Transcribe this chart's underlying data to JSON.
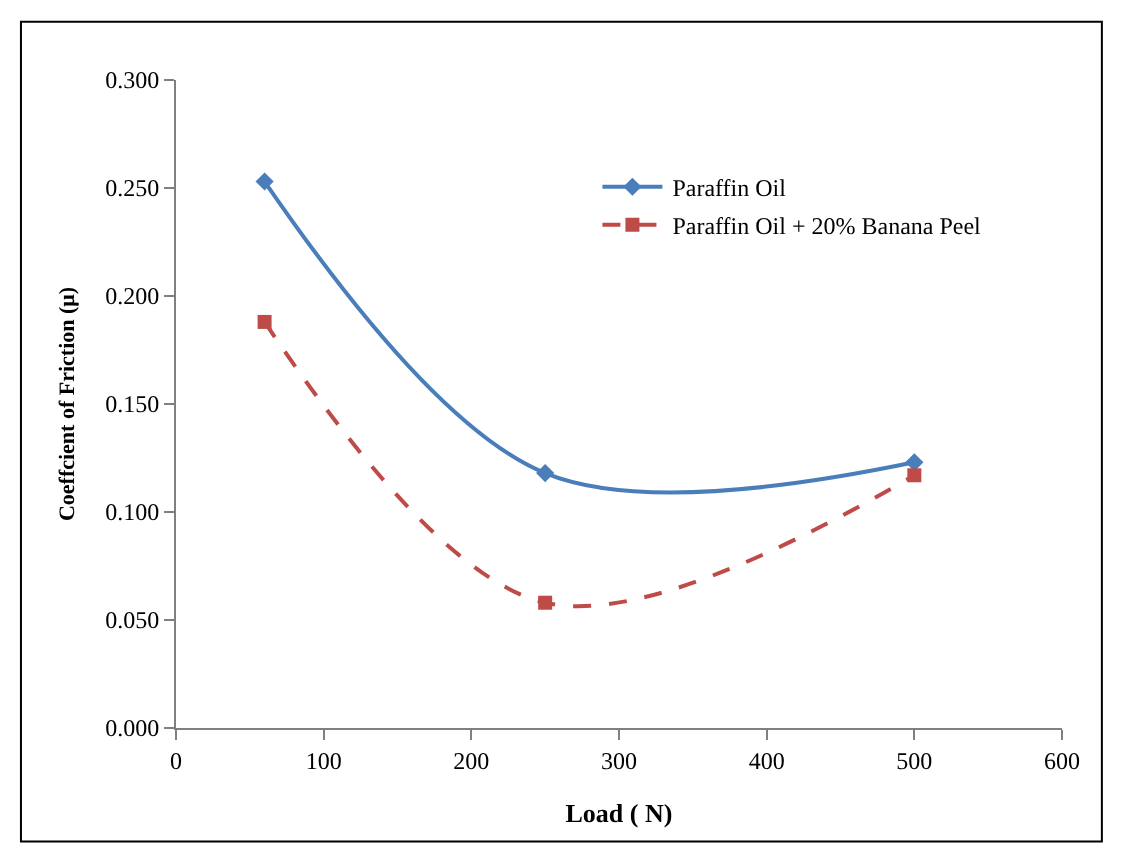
{
  "chart_data": {
    "type": "line",
    "xlabel": "Load ( N)",
    "ylabel": "Coeffcient of Friction (μ)",
    "x": [
      60,
      250,
      500
    ],
    "series": [
      {
        "name": "Paraffin Oil",
        "color": "#4a7ebb",
        "values": [
          0.253,
          0.118,
          0.123
        ],
        "marker": "diamond",
        "line_style": "solid"
      },
      {
        "name": "Paraffin Oil + 20% Banana Peel",
        "color": "#be4b48",
        "values": [
          0.188,
          0.058,
          0.117
        ],
        "marker": "square",
        "line_style": "dashed"
      }
    ],
    "xlim": [
      0,
      600
    ],
    "xticks": [
      0,
      100,
      200,
      300,
      400,
      500,
      600
    ],
    "ylim": [
      0,
      0.3
    ],
    "yticks": [
      {
        "value": 0,
        "label": "0.000"
      },
      {
        "value": 0.05,
        "label": "0.050"
      },
      {
        "value": 0.1,
        "label": "0.100"
      },
      {
        "value": 0.15,
        "label": "0.150"
      },
      {
        "value": 0.2,
        "label": "0.200"
      },
      {
        "value": 0.25,
        "label": "0.250"
      },
      {
        "value": 0.3,
        "label": "0.300"
      }
    ],
    "legend": "top right"
  }
}
